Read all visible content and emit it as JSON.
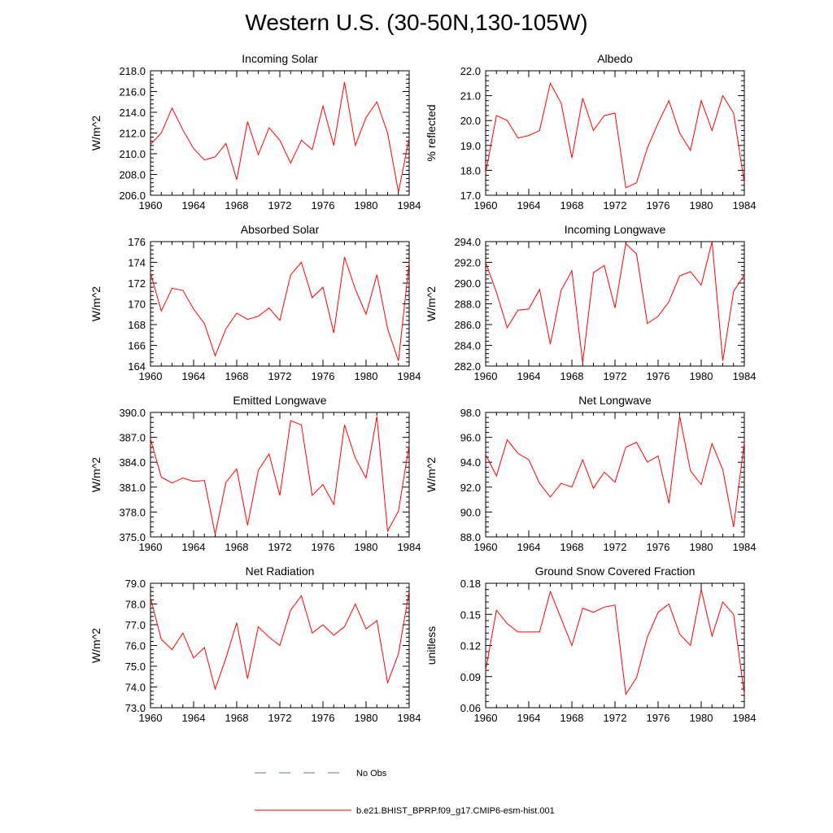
{
  "page_title": "Western U.S. (30-50N,130-105W)",
  "colors": {
    "model_line": "#ff0000",
    "obs_line": "#5b6fd6",
    "axes": "#000000"
  },
  "legend": {
    "obs_label": "No Obs",
    "model_label": "b.e21.BHIST_BPRP.f09_g17.CMIP6-esm-hist.001"
  },
  "chart_data": [
    {
      "type": "line",
      "title": "Incoming Solar",
      "ylabel": "W/m^2",
      "xlim": [
        1960,
        1984
      ],
      "ylim": [
        206,
        218
      ],
      "yticks": [
        206,
        208,
        210,
        212,
        214,
        216,
        218
      ],
      "yticklabels": [
        "206.0",
        "208.0",
        "210.0",
        "212.0",
        "214.0",
        "216.0",
        "218.0"
      ],
      "xticks": [
        1960,
        1964,
        1968,
        1972,
        1976,
        1980,
        1984
      ],
      "x": [
        1960,
        1961,
        1962,
        1963,
        1964,
        1965,
        1966,
        1967,
        1968,
        1969,
        1970,
        1971,
        1972,
        1973,
        1974,
        1975,
        1976,
        1977,
        1978,
        1979,
        1980,
        1981,
        1982,
        1983,
        1984
      ],
      "series": [
        {
          "values": [
            210.9,
            212.0,
            214.4,
            212.3,
            210.5,
            209.4,
            209.7,
            211.0,
            207.5,
            213.1,
            209.9,
            212.5,
            211.3,
            209.1,
            211.3,
            210.4,
            214.6,
            210.8,
            216.9,
            210.8,
            213.5,
            215.0,
            212.0,
            206.3,
            211.5
          ]
        }
      ]
    },
    {
      "type": "line",
      "title": "Albedo",
      "ylabel": "% reflected",
      "xlim": [
        1960,
        1984
      ],
      "ylim": [
        17,
        22
      ],
      "yticks": [
        17,
        18,
        19,
        20,
        21,
        22
      ],
      "yticklabels": [
        "17.0",
        "18.0",
        "19.0",
        "20.0",
        "21.0",
        "22.0"
      ],
      "xticks": [
        1960,
        1964,
        1968,
        1972,
        1976,
        1980,
        1984
      ],
      "x": [
        1960,
        1961,
        1962,
        1963,
        1964,
        1965,
        1966,
        1967,
        1968,
        1969,
        1970,
        1971,
        1972,
        1973,
        1974,
        1975,
        1976,
        1977,
        1978,
        1979,
        1980,
        1981,
        1982,
        1983,
        1984
      ],
      "series": [
        {
          "values": [
            17.9,
            20.2,
            20.0,
            19.3,
            19.4,
            19.6,
            21.5,
            20.7,
            18.5,
            20.9,
            19.6,
            20.2,
            20.3,
            17.3,
            17.5,
            18.9,
            19.9,
            20.8,
            19.5,
            18.8,
            20.8,
            19.6,
            21.0,
            20.3,
            17.5
          ]
        }
      ]
    },
    {
      "type": "line",
      "title": "Absorbed Solar",
      "ylabel": "W/m^2",
      "xlim": [
        1960,
        1984
      ],
      "ylim": [
        164,
        176
      ],
      "yticks": [
        164,
        166,
        168,
        170,
        172,
        174,
        176
      ],
      "yticklabels": [
        "164",
        "166",
        "168",
        "170",
        "172",
        "174",
        "176"
      ],
      "xticks": [
        1960,
        1964,
        1968,
        1972,
        1976,
        1980,
        1984
      ],
      "x": [
        1960,
        1961,
        1962,
        1963,
        1964,
        1965,
        1966,
        1967,
        1968,
        1969,
        1970,
        1971,
        1972,
        1973,
        1974,
        1975,
        1976,
        1977,
        1978,
        1979,
        1980,
        1981,
        1982,
        1983,
        1984
      ],
      "series": [
        {
          "values": [
            173.0,
            169.3,
            171.5,
            171.3,
            169.5,
            168.1,
            165.0,
            167.6,
            169.1,
            168.5,
            168.8,
            169.6,
            168.4,
            172.8,
            174.0,
            170.6,
            171.6,
            167.2,
            174.5,
            171.4,
            169.0,
            172.8,
            167.6,
            164.5,
            174.0
          ]
        }
      ]
    },
    {
      "type": "line",
      "title": "Incoming Longwave",
      "ylabel": "W/m^2",
      "xlim": [
        1960,
        1984
      ],
      "ylim": [
        282,
        294
      ],
      "yticks": [
        282,
        284,
        286,
        288,
        290,
        292,
        294
      ],
      "yticklabels": [
        "282.0",
        "284.0",
        "286.0",
        "288.0",
        "290.0",
        "292.0",
        "294.0"
      ],
      "xticks": [
        1960,
        1964,
        1968,
        1972,
        1976,
        1980,
        1984
      ],
      "x": [
        1960,
        1961,
        1962,
        1963,
        1964,
        1965,
        1966,
        1967,
        1968,
        1969,
        1970,
        1971,
        1972,
        1973,
        1974,
        1975,
        1976,
        1977,
        1978,
        1979,
        1980,
        1981,
        1982,
        1983,
        1984
      ],
      "series": [
        {
          "values": [
            292.0,
            289.1,
            285.7,
            287.4,
            287.5,
            289.4,
            284.1,
            289.3,
            291.2,
            282.3,
            291.0,
            291.7,
            287.6,
            293.8,
            292.8,
            286.1,
            286.8,
            288.2,
            290.7,
            291.1,
            289.8,
            294.0,
            282.5,
            289.2,
            290.8
          ]
        }
      ]
    },
    {
      "type": "line",
      "title": "Emitted Longwave",
      "ylabel": "W/m^2",
      "xlim": [
        1960,
        1984
      ],
      "ylim": [
        375,
        390
      ],
      "yticks": [
        375,
        378,
        381,
        384,
        387,
        390
      ],
      "yticklabels": [
        "375.0",
        "378.0",
        "381.0",
        "384.0",
        "387.0",
        "390.0"
      ],
      "xticks": [
        1960,
        1964,
        1968,
        1972,
        1976,
        1980,
        1984
      ],
      "x": [
        1960,
        1961,
        1962,
        1963,
        1964,
        1965,
        1966,
        1967,
        1968,
        1969,
        1970,
        1971,
        1972,
        1973,
        1974,
        1975,
        1976,
        1977,
        1978,
        1979,
        1980,
        1981,
        1982,
        1983,
        1984
      ],
      "series": [
        {
          "values": [
            386.8,
            382.2,
            381.5,
            382.1,
            381.7,
            381.8,
            375.3,
            381.6,
            383.2,
            376.4,
            383.0,
            385.0,
            380.0,
            389.0,
            388.5,
            380.0,
            381.3,
            378.9,
            388.5,
            384.5,
            382.1,
            389.5,
            375.7,
            378.1,
            386.1
          ]
        }
      ]
    },
    {
      "type": "line",
      "title": "Net Longwave",
      "ylabel": "W/m^2",
      "xlim": [
        1960,
        1984
      ],
      "ylim": [
        88,
        98
      ],
      "yticks": [
        88,
        90,
        92,
        94,
        96,
        98
      ],
      "yticklabels": [
        "88.0",
        "90.0",
        "92.0",
        "94.0",
        "96.0",
        "98.0"
      ],
      "xticks": [
        1960,
        1964,
        1968,
        1972,
        1976,
        1980,
        1984
      ],
      "x": [
        1960,
        1961,
        1962,
        1963,
        1964,
        1965,
        1966,
        1967,
        1968,
        1969,
        1970,
        1971,
        1972,
        1973,
        1974,
        1975,
        1976,
        1977,
        1978,
        1979,
        1980,
        1981,
        1982,
        1983,
        1984
      ],
      "series": [
        {
          "values": [
            94.6,
            92.9,
            95.8,
            94.7,
            94.2,
            92.3,
            91.2,
            92.3,
            92.0,
            94.2,
            91.9,
            93.2,
            92.4,
            95.2,
            95.6,
            94.0,
            94.5,
            90.7,
            97.7,
            93.3,
            92.2,
            95.5,
            93.4,
            88.8,
            95.6
          ]
        }
      ]
    },
    {
      "type": "line",
      "title": "Net Radiation",
      "ylabel": "W/m^2",
      "xlim": [
        1960,
        1984
      ],
      "ylim": [
        73,
        79
      ],
      "yticks": [
        73,
        74,
        75,
        76,
        77,
        78,
        79
      ],
      "yticklabels": [
        "73.0",
        "74.0",
        "75.0",
        "76.0",
        "77.0",
        "78.0",
        "79.0"
      ],
      "xticks": [
        1960,
        1964,
        1968,
        1972,
        1976,
        1980,
        1984
      ],
      "x": [
        1960,
        1961,
        1962,
        1963,
        1964,
        1965,
        1966,
        1967,
        1968,
        1969,
        1970,
        1971,
        1972,
        1973,
        1974,
        1975,
        1976,
        1977,
        1978,
        1979,
        1980,
        1981,
        1982,
        1983,
        1984
      ],
      "series": [
        {
          "values": [
            78.3,
            76.3,
            75.8,
            76.6,
            75.4,
            75.9,
            73.9,
            75.4,
            77.1,
            74.4,
            76.9,
            76.4,
            76.0,
            77.7,
            78.4,
            76.6,
            77.0,
            76.5,
            76.9,
            78.0,
            76.8,
            77.2,
            74.2,
            75.6,
            78.6
          ]
        }
      ]
    },
    {
      "type": "line",
      "title": "Ground Snow Covered Fraction",
      "ylabel": "unitless",
      "xlim": [
        1960,
        1984
      ],
      "ylim": [
        0.06,
        0.18
      ],
      "yticks": [
        0.06,
        0.09,
        0.12,
        0.15,
        0.18
      ],
      "yticklabels": [
        "0.06",
        "0.09",
        "0.12",
        "0.15",
        "0.18"
      ],
      "xticks": [
        1960,
        1964,
        1968,
        1972,
        1976,
        1980,
        1984
      ],
      "x": [
        1960,
        1961,
        1962,
        1963,
        1964,
        1965,
        1966,
        1967,
        1968,
        1969,
        1970,
        1971,
        1972,
        1973,
        1974,
        1975,
        1976,
        1977,
        1978,
        1979,
        1980,
        1981,
        1982,
        1983,
        1984
      ],
      "series": [
        {
          "values": [
            0.096,
            0.154,
            0.141,
            0.133,
            0.133,
            0.133,
            0.172,
            0.146,
            0.12,
            0.156,
            0.152,
            0.157,
            0.159,
            0.073,
            0.089,
            0.128,
            0.152,
            0.16,
            0.131,
            0.12,
            0.174,
            0.129,
            0.162,
            0.15,
            0.073
          ]
        }
      ]
    }
  ]
}
